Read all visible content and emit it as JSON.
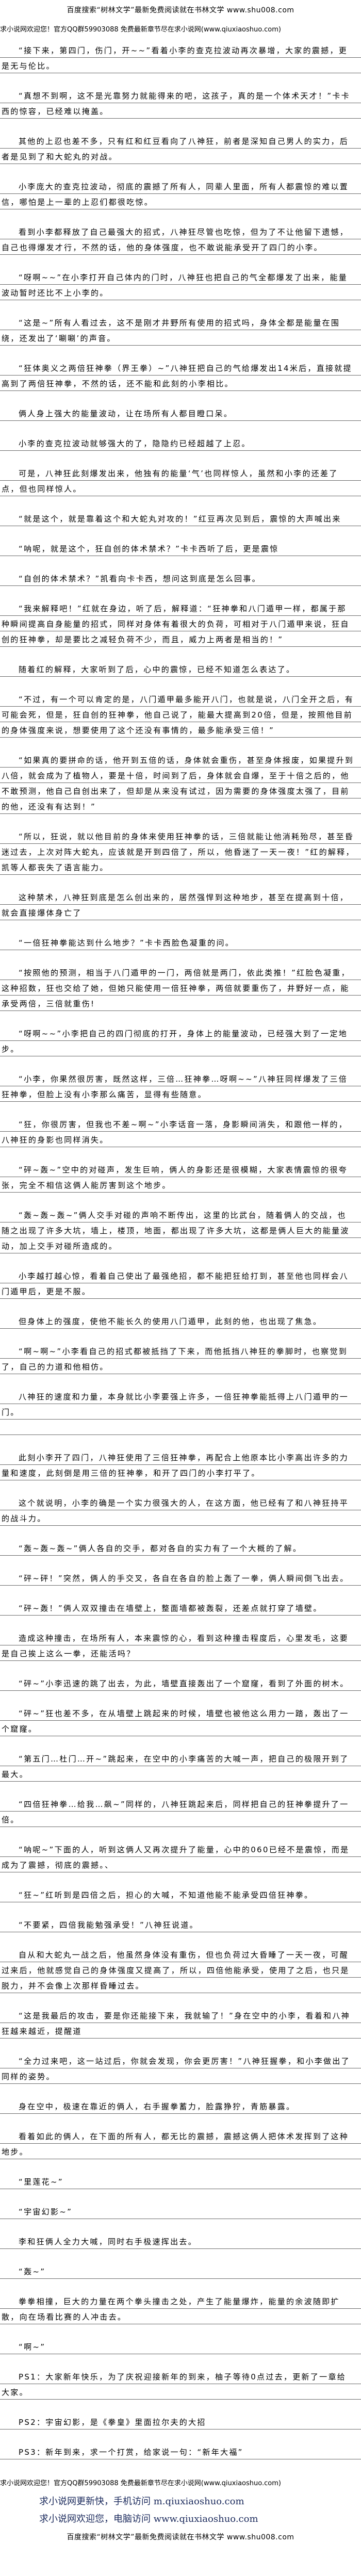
{
  "header": {
    "banner": "百度搜索“树林文学”最新免费阅读就在书林文学 www.shu008.com",
    "site_notice": "求小说网欢迎您！官方QQ群59903088 免费最新章节尽在求小说网(www.qiuxiaoshuo.com)"
  },
  "paragraphs": [
    "“接下来，第四门，伤门，开~~”看着小李的查克拉波动再次暴增，大家的震撼，更是无与伦比。",
    "“真想不到啊，这不是光靠努力就能得来的吧，这孩子，真的是一个体术天才！”卡卡西的惊容，已经难以掩盖。",
    "其他的上忍也差不多，只有红和红豆看向了八神狂，前者是深知自己男人的实力，后者是见到了和大蛇丸的对战。",
    "小李庞大的查克拉波动，彻底的震撼了所有人，同辈人里面，所有人都震惊的难以置信，哪怕是上一辈的上忍们都很吃惊。",
    "看到小李都释放了自己最强大的招式，八神狂尽管也吃惊，但为了不让他留下遗憾，自己也得爆发才行，不然的话，他的身体强度，也不敢说能承受开了四门的小李。",
    "“呀啊~~”在小李打开自己体内的门时，八神狂也把自己的气全都爆发了出来，能量波动暂时还比不上小李的。",
    "“这是~”所有人看过去，这不是刚才井野所有使用的招式吗，身体全都是能量在围绕，还发出了‘唰唰’的声音。",
    "“狂体奥义之两倍狂神拳（界王拳）~”八神狂把自己的气给爆发出14米后，直接就提高到了两倍狂神拳，不然的话，还不能和此刻的小李相比。",
    "俩人身上强大的能量波动，让在场所有人都目瞪口呆。",
    "小李的查克拉波动就够强大的了，隐隐约已经超越了上忍。",
    "可是，八神狂此刻爆发出来，他独有的能量‘气’也同样惊人，虽然和小李的还差了点，但也同样惊人。",
    "“就是这个，就是靠着这个和大蛇丸对攻的！”红豆再次见到后，震惊的大声喊出来",
    "“呐呢，就是这个，狂自创的体术禁术？”卡卡西听了后，更是震惊",
    "“自创的体术禁术？”凯看向卡卡西，想问这到底是怎么回事。",
    "“我来解释吧！”红就在身边，听了后，解释道：“狂神拳和八门遁甲一样，都属于那种瞬间提高自身能量的招式，同样对身体有着很大的负荷，可相对于八门遁甲来说，狂自创的狂神拳，却是要比之减轻负荷不少，而且，威力上两者是相当的！”",
    "随着红的解释，大家听到了后，心中的震惊，已经不知道怎么表达了。",
    "“不过，有一个可以肯定的是，八门遁甲最多能开八门，也就是说，八门全开之后，有可能会死，但是，狂自创的狂神拳，他自己说了，能最大提高到20倍，但是，按照他目前的身体强度来说，想要使用了这个还没有事情的，最多能承受三倍！”",
    "“如果真的要拼命的话，他开到五倍的话，身体就会重伤，甚至身体报废，如果提升到八倍，就会成为了植物人，要是十倍，时间到了后，身体就会自爆，至于十倍之后的，他不敢预测，他自己自创出来了，但却是从来没有试过，因为需要的身体强度太强了，目前的他，还没有有达到！”",
    "“所以，狂说，就以他目前的身体来使用狂神拳的话，三倍就能让他消耗殆尽，甚至昏迷过去，上次对阵大蛇丸，应该就是开到四倍了，所以，他昏迷了一天一夜！”红的解释，凯等人都丧失了语言能力。",
    "这种禁术，八神狂到底是怎么创出来的，居然强悍到这种地步，甚至在提高到十倍，就会直接爆体身亡了",
    "“一倍狂神拳能达到什么地步？”卡卡西脸色凝重的问。",
    "“按照他的预测，相当于八门遁甲的一门，两倍就是两门，依此类推！”红脸色凝重，这种招数，狂也交给了她，但她只能使用一倍狂神拳，两倍就要重伤了，井野好一点，能承受两倍，三倍就重伤!",
    "“呀啊~~”小李把自己的四门彻底的打开，身体上的能量波动，已经强大到了一定地步。",
    "“小李，你果然很厉害，既然这样，三倍…狂神拳…呀啊~~”八神狂同样爆发了三倍狂神拳，但脸上没有小李那么痛苦，显得有些随意。",
    "“狂，你很厉害，但我也不差~啊~”小李话音一落，身影瞬间消失，和跟他一样的，八神狂的身影也同样消失。",
    "“砰~轰~”空中的对碰声，发生巨响，俩人的身影还是很模糊，大家表情震惊的很夸张，完全不相信这俩人能厉害到这个地步。",
    "“轰~轰~轰~”俩人交手对碰的声响不断传出，这里的比武台，随着俩人的交战，也随之出现了许多大坑，墙上，楼顶，地面，都出现了许多大坑，这都是俩人巨大的能量波动，加上交手对碰所造成的。",
    "小李越打越心惊，看着自己使出了最强绝招，都不能把狂给打到，甚至他也同样会八门遁甲后，更是不服。",
    "但身体上的强度，使他不能长久的使用八门遁甲，此刻的他，也出现了焦急。",
    "“啊~啊~”小李看自己的招式都被抵挡了下来，而他抵挡八神狂的拳脚时，也察觉到了，自己的力道和他相仿。",
    "八神狂的速度和力量，本身就比小李要强上许多，一倍狂神拳能抵得上八门遁甲的一门。\n　",
    "此刻小李开了四门，八神狂使用了三倍狂神拳，再配合上他原本比小李高出许多的力量和速度，此刻倒是用三倍的狂神拳，和开了四门的小李打平了。",
    "这个就说明，小李的确是一个实力很强大的人，在这方面，他已经有了和八神狂持平的战斗力。",
    "“轰~轰~轰~”俩人各自的交手，都对各自的实力有了一个大概的了解。",
    "“砰~砰！”突然，俩人的手交叉，各自在各自的脸上轰了一拳，俩人瞬间倒飞出去。",
    "“砰~轰！”俩人双双撞击在墙壁上，整面墙都被轰裂，还差点就打穿了墙壁。",
    "造成这种撞击，在场所有人，本来震惊的心，看到这种撞击程度后，心里发毛，这要是自己挨上这么一拳，还能活吗？",
    "“砰~”小李迅速的跳了出去，为此，墙壁直接轰出了一个窟窿，看到了外面的树木。",
    "“砰~”狂也差不多，在从墙壁上跳起来的时候，墙壁也被他这么用力一踏，轰出了一个窟窿。",
    "“第五门…杜门…开~”跳起来，在空中的小李痛苦的大喊一声，把自己的极限开到了最大。",
    "“四倍狂神拳…给我…飙~”同样的，八神狂跳起来后，同样把自己的狂神拳提升了一倍。",
    "“呐呢~”下面的人，听到这俩人又再次提升了能量，心中的060已经不是震惊，而是成为了震撼，彻底的震撼。、",
    "“狂~”红听到是四倍之后，担心的大喊，不知道他能不能承受四倍狂神拳。",
    "“不要紧，四倍我能勉强承受！”八神狂说道。",
    "自从和大蛇丸一战之后，他虽然身体没有重伤，但也负荷过大昏睡了一天一夜，可醒过来后，他就感觉自己的身体强度又提高了，所以，四倍他能承受，使用了之后，也只是脱力，并不会像上次那样昏睡过去。",
    "“这是我最后的攻击，要是你还能接下来，我就输了！”身在空中的小李，看着和八神狂越来越近，提醒道",
    "“全力过来吧，这一站过后，你就会发现，你会更厉害！”八神狂握拳，和小李做出了同样的姿势。",
    "身在空中，极速在靠近的俩人，右手握拳蓄力，脸露狰狞，青筋暴露。",
    "看着如此的俩人，在下面的所有人，都无比的震撼，震撼这俩人把体术发挥到了这种地步。",
    "“里莲花~”",
    "“宇宙幻影~”",
    "李和狂俩人全力大喊，同时右手极速挥出去。",
    "“轰~”",
    "拳拳相撞，巨大的力量在两个拳头撞击之处，产生了能量爆炸，能量的余波随即扩散，向在场看比赛的人冲击去。",
    "“啊~”",
    "PS1：大家新年快乐，为了庆祝迎接新年的到来，柚子等待0点过去，更新了一章给大家。",
    "PS2：宇宙幻影，是《拳皇》里面拉尔夫的大招",
    "PS3：新年到来，求一个打赏，给家说一句：“新年大福”"
  ],
  "footer": {
    "site_notice": "求小说网欢迎您！官方QQ群59903088 免费最新章节尽在求小说网(www.qiuxiaoshuo.com)",
    "mobile_line": "求小说网更新快，手机访问 m.qiuxiaoshuo.com",
    "pc_line": "求小说网欢迎您，电脑访问 www.qiuxiaoshuo.com",
    "banner": "百度搜索“树林文学”最新免费阅读就在书林文学 www.shu008.com",
    "blue_color": "#1b2a5c"
  }
}
